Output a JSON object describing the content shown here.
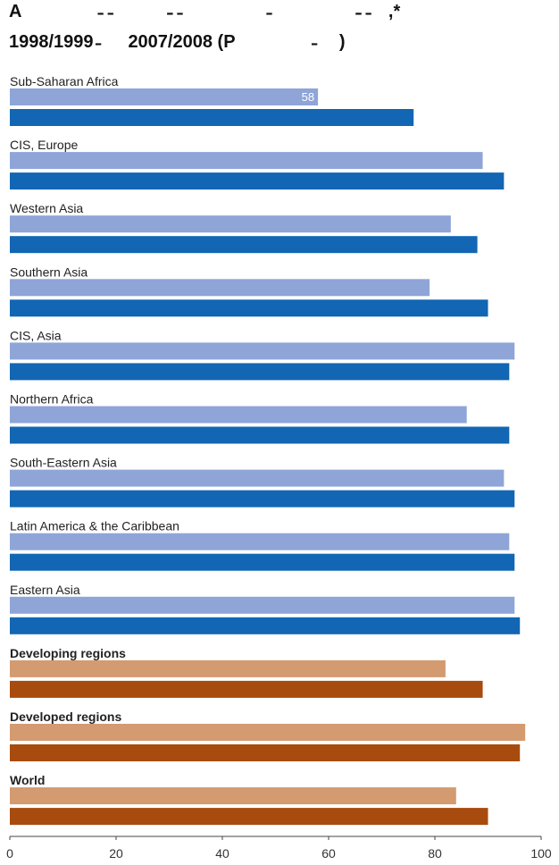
{
  "title_line1": "A                ̵  ̵            ̵̵  ̵                  ̵                  ̵̵  ̵    ,*",
  "title_line2": "1998/1999 ̵      2007/2008 (P                ̵     )",
  "colors": {
    "region_1998": "#8fa5d8",
    "region_2007": "#1266b3",
    "aggregate_1998": "#d49a70",
    "aggregate_2007": "#a84b0e",
    "axis": "#444444",
    "value_label": "#ffffff"
  },
  "chart_data": {
    "type": "bar",
    "orientation": "horizontal",
    "xlim": [
      0,
      100
    ],
    "x_ticks": [
      0,
      20,
      40,
      60,
      80,
      100
    ],
    "x_tick_labels": [
      "0",
      "20",
      "40",
      "60",
      "80",
      "100"
    ],
    "categories": [
      "Sub-Saharan Africa",
      "CIS, Europe",
      "Western Asia",
      "Southern Asia",
      "CIS, Asia",
      "Northern Africa",
      "South-Eastern Asia",
      "Latin America & the Caribbean",
      "Eastern Asia",
      "Developing regions",
      "Developed regions",
      "World"
    ],
    "bold_categories": [
      "Developing regions",
      "Developed regions",
      "World"
    ],
    "series": [
      {
        "values": [
          58,
          89,
          83,
          79,
          95,
          86,
          93,
          94,
          95,
          82,
          97,
          84
        ]
      },
      {
        "values": [
          76,
          93,
          88,
          90,
          94,
          94,
          95,
          95,
          96,
          89,
          96,
          90
        ]
      }
    ],
    "data_labels": [
      {
        "series": 0,
        "category": 0,
        "text": "58"
      }
    ]
  }
}
